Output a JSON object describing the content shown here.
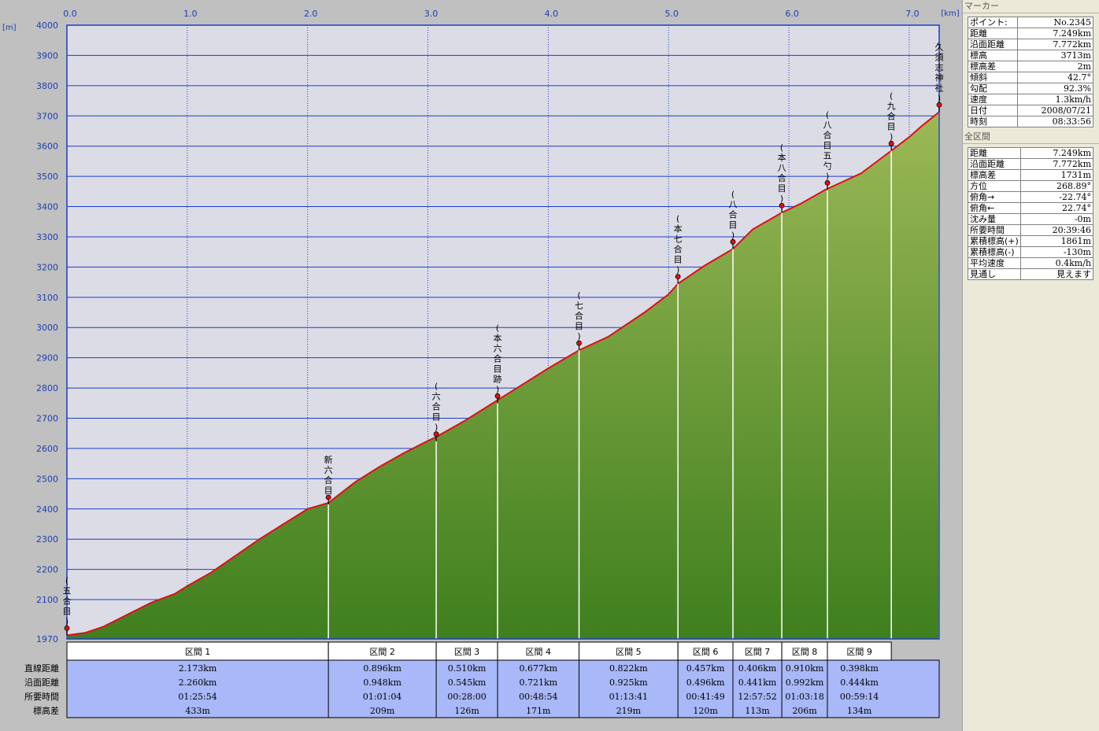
{
  "chart_data": {
    "type": "area",
    "xlabel": "[km]",
    "ylabel": "[m]",
    "xlim": [
      0,
      7.249
    ],
    "ylim": [
      1970,
      4000
    ],
    "x_ticks": [
      0.0,
      1.0,
      2.0,
      3.0,
      4.0,
      5.0,
      6.0,
      7.0
    ],
    "x_tick_labels": [
      "0.0",
      "1.0",
      "2.0",
      "3.0",
      "4.0",
      "5.0",
      "6.0",
      "7.0"
    ],
    "y_ticks": [
      1970,
      2100,
      2200,
      2300,
      2400,
      2500,
      2600,
      2700,
      2800,
      2900,
      3000,
      3100,
      3200,
      3300,
      3400,
      3500,
      3600,
      3700,
      3800,
      3900,
      4000
    ],
    "y_tick_labels": [
      "1970",
      "2100",
      "2200",
      "2300",
      "2400",
      "2500",
      "2600",
      "2700",
      "2800",
      "2900",
      "3000",
      "3100",
      "3200",
      "3300",
      "3400",
      "3500",
      "3600",
      "3700",
      "3800",
      "3900",
      "4000"
    ],
    "grid": true,
    "profile": {
      "x": [
        0.0,
        0.15,
        0.3,
        0.5,
        0.7,
        0.9,
        1.0,
        1.2,
        1.4,
        1.6,
        1.8,
        2.0,
        2.173,
        2.4,
        2.6,
        2.8,
        3.0,
        3.069,
        3.3,
        3.579,
        3.8,
        4.0,
        4.256,
        4.5,
        4.8,
        5.0,
        5.078,
        5.3,
        5.535,
        5.7,
        5.941,
        6.1,
        6.3,
        6.6,
        6.851,
        7.0,
        7.1,
        7.249
      ],
      "y": [
        1982,
        1990,
        2010,
        2050,
        2090,
        2120,
        2145,
        2190,
        2245,
        2300,
        2350,
        2400,
        2420,
        2490,
        2540,
        2585,
        2625,
        2638,
        2690,
        2760,
        2815,
        2865,
        2925,
        2970,
        3050,
        3110,
        3145,
        3205,
        3260,
        3325,
        3380,
        3410,
        3455,
        3510,
        3585,
        3630,
        3665,
        3713
      ]
    },
    "markers": [
      {
        "label": "(五合目)",
        "x": 0.0,
        "y": 1982
      },
      {
        "label": "新六合目",
        "x": 2.173,
        "y": 2415
      },
      {
        "label": "(六合目)",
        "x": 3.069,
        "y": 2624
      },
      {
        "label": "(本六合目跡)",
        "x": 3.579,
        "y": 2750
      },
      {
        "label": "(七合目)",
        "x": 4.256,
        "y": 2925
      },
      {
        "label": "(本七合目)",
        "x": 5.078,
        "y": 3145
      },
      {
        "label": "(八合目)",
        "x": 5.535,
        "y": 3260
      },
      {
        "label": "(本八合目)",
        "x": 5.941,
        "y": 3380
      },
      {
        "label": "(八合目五勺)",
        "x": 6.32,
        "y": 3455
      },
      {
        "label": "(九合目)",
        "x": 6.851,
        "y": 3585
      },
      {
        "label": "久須志神社)",
        "x": 7.249,
        "y": 3713
      }
    ]
  },
  "segments": {
    "row_labels": [
      "直線距離",
      "沿面距離",
      "所要時間",
      "標高差"
    ],
    "items": [
      {
        "name": "区間 1",
        "straight": "2.173km",
        "surface": "2.260km",
        "time": "01:25:54",
        "elev": "433m"
      },
      {
        "name": "区間 2",
        "straight": "0.896km",
        "surface": "0.948km",
        "time": "01:01:04",
        "elev": "209m"
      },
      {
        "name": "区間 3",
        "straight": "0.510km",
        "surface": "0.545km",
        "time": "00:28:00",
        "elev": "126m"
      },
      {
        "name": "区間 4",
        "straight": "0.677km",
        "surface": "0.721km",
        "time": "00:48:54",
        "elev": "171m"
      },
      {
        "name": "区間 5",
        "straight": "0.822km",
        "surface": "0.925km",
        "time": "01:13:41",
        "elev": "219m"
      },
      {
        "name": "区間 6",
        "straight": "0.457km",
        "surface": "0.496km",
        "time": "00:41:49",
        "elev": "120m"
      },
      {
        "name": "区間 7",
        "straight": "0.406km",
        "surface": "0.441km",
        "time": "12:57:52",
        "elev": "113m"
      },
      {
        "name": "区間 8",
        "straight": "0.910km",
        "surface": "0.992km",
        "time": "01:03:18",
        "elev": "206m"
      },
      {
        "name": "区間 9",
        "straight": "0.398km",
        "surface": "0.444km",
        "time": "00:59:14",
        "elev": "134m"
      }
    ]
  },
  "panel": {
    "marker_title": "マーカー",
    "marker": [
      {
        "k": "ポイント:",
        "v": "No.2345"
      },
      {
        "k": "距離",
        "v": "7.249km"
      },
      {
        "k": "沿面距離",
        "v": "7.772km"
      },
      {
        "k": "標高",
        "v": "3713m"
      },
      {
        "k": "標高差",
        "v": "2m"
      },
      {
        "k": "傾斜",
        "v": "42.7°"
      },
      {
        "k": "勾配",
        "v": "92.3%"
      },
      {
        "k": "速度",
        "v": "1.3km/h"
      },
      {
        "k": "日付",
        "v": "2008/07/21"
      },
      {
        "k": "時刻",
        "v": "08:33:56"
      }
    ],
    "total_title": "全区間",
    "total": [
      {
        "k": "距離",
        "v": "7.249km"
      },
      {
        "k": "沿面距離",
        "v": "7.772km"
      },
      {
        "k": "標高差",
        "v": "1731m"
      },
      {
        "k": "方位",
        "v": "268.89°"
      },
      {
        "k": "俯角→",
        "v": "-22.74°"
      },
      {
        "k": "俯角←",
        "v": "22.74°"
      },
      {
        "k": "沈み量",
        "v": "-0m"
      },
      {
        "k": "所要時間",
        "v": "20:39:46"
      },
      {
        "k": "累積標高(+)",
        "v": "1861m"
      },
      {
        "k": "累積標高(-)",
        "v": "-130m"
      },
      {
        "k": "平均速度",
        "v": "0.4km/h"
      },
      {
        "k": "見通し",
        "v": "見えます"
      }
    ]
  },
  "colors": {
    "plot_bg": "#dcdce6",
    "grid_h": "#1c3cc8",
    "grid_v": "#1c3cc8",
    "fill_top": "#9cb856",
    "fill_bottom": "#3f7f1e",
    "profile_line": "#e01010",
    "table_bg": "#a8b8f8",
    "table_header_bg": "#ffffff",
    "axis_text": "#1a3fb0"
  }
}
